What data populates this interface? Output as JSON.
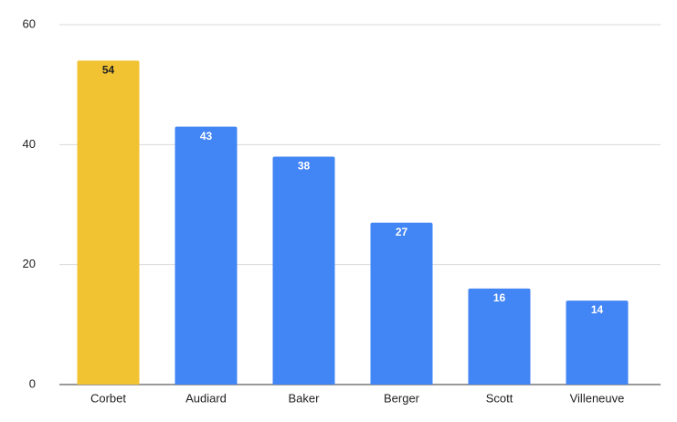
{
  "chart_data": {
    "type": "bar",
    "categories": [
      "Corbet",
      "Audiard",
      "Baker",
      "Berger",
      "Scott",
      "Villeneuve"
    ],
    "values": [
      54,
      43,
      38,
      27,
      16,
      14
    ],
    "colors": [
      "#f1c232",
      "#4285f4",
      "#4285f4",
      "#4285f4",
      "#4285f4",
      "#4285f4"
    ],
    "label_colors": [
      "#222222",
      "#ffffff",
      "#ffffff",
      "#ffffff",
      "#ffffff",
      "#ffffff"
    ],
    "ylim": [
      0,
      60
    ],
    "yticks": [
      0,
      20,
      40,
      60
    ],
    "grid": true
  }
}
